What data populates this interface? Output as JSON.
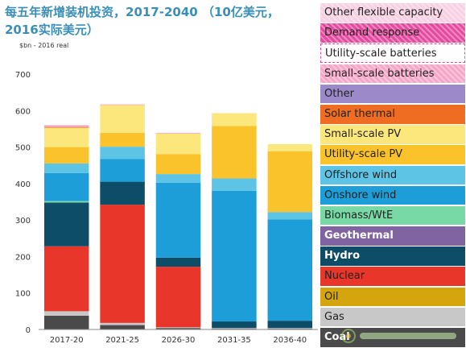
{
  "title_line1": "每五年新增装机投资，2017-2040 （10亿美元，",
  "title_line2": "2016实际美元）",
  "unit_label": "$bn - 2016 real",
  "chart_data": {
    "type": "bar",
    "stacked": true,
    "categories": [
      "2017-20",
      "2021-25",
      "2026-30",
      "2031-35",
      "2036-40"
    ],
    "ylim": [
      0,
      700
    ],
    "yticks": [
      0,
      100,
      200,
      300,
      400,
      500,
      600,
      700
    ],
    "grid": false,
    "legend_position": "right",
    "series": [
      {
        "name": "Coal",
        "color": "#4a4a4a",
        "text_color": "#ffffff",
        "values": [
          38,
          12,
          4,
          2,
          2
        ]
      },
      {
        "name": "Gas",
        "color": "#c8c8c8",
        "text_color": "#222222",
        "values": [
          12,
          6,
          2,
          2,
          2
        ]
      },
      {
        "name": "Oil",
        "color": "#d4a50c",
        "text_color": "#222222",
        "values": [
          0,
          0,
          0,
          0,
          0
        ]
      },
      {
        "name": "Nuclear",
        "color": "#e8362a",
        "text_color": "#222222",
        "values": [
          178,
          324,
          166,
          0,
          0
        ]
      },
      {
        "name": "Hydro",
        "color": "#0e4d68",
        "text_color": "#ffffff",
        "values": [
          120,
          63,
          25,
          18,
          20
        ]
      },
      {
        "name": "Geothermal",
        "color": "#8064a2",
        "text_color": "#ffffff",
        "values": [
          0,
          0,
          0,
          0,
          0
        ]
      },
      {
        "name": "Biomass/WtE",
        "color": "#79d9a6",
        "text_color": "#222222",
        "values": [
          4,
          0,
          0,
          0,
          0
        ]
      },
      {
        "name": "Onshore wind",
        "color": "#1e9ed8",
        "text_color": "#222222",
        "values": [
          77,
          62,
          205,
          358,
          278
        ]
      },
      {
        "name": "Offshore wind",
        "color": "#5dc4e6",
        "text_color": "#222222",
        "values": [
          26,
          34,
          24,
          34,
          20
        ]
      },
      {
        "name": "Utility-scale PV",
        "color": "#fbc32b",
        "text_color": "#222222",
        "values": [
          45,
          38,
          55,
          144,
          166
        ]
      },
      {
        "name": "Small-scale PV",
        "color": "#fce77d",
        "text_color": "#222222",
        "values": [
          53,
          76,
          56,
          35,
          20
        ]
      },
      {
        "name": "Solar thermal",
        "color": "#ef6d22",
        "text_color": "#222222",
        "values": [
          2,
          0,
          0,
          0,
          0
        ]
      },
      {
        "name": "Other",
        "color": "#9c89c9",
        "text_color": "#222222",
        "values": [
          0,
          0,
          0,
          0,
          0
        ]
      },
      {
        "name": "Small-scale batteries",
        "color": "#f6a7c9",
        "text_color": "#222222",
        "values": [
          5,
          2,
          2,
          0,
          0
        ]
      },
      {
        "name": "Utility-scale batteries",
        "color": "#ffffff",
        "text_color": "#222222",
        "values": [
          0,
          0,
          0,
          0,
          0
        ]
      },
      {
        "name": "Demand response",
        "color": "#e64aa0",
        "text_color": "#222222",
        "values": [
          0,
          0,
          0,
          0,
          0
        ]
      },
      {
        "name": "Other flexible capacity",
        "color": "#f8d0e4",
        "text_color": "#222222",
        "values": [
          0,
          0,
          0,
          0,
          0
        ]
      }
    ]
  }
}
